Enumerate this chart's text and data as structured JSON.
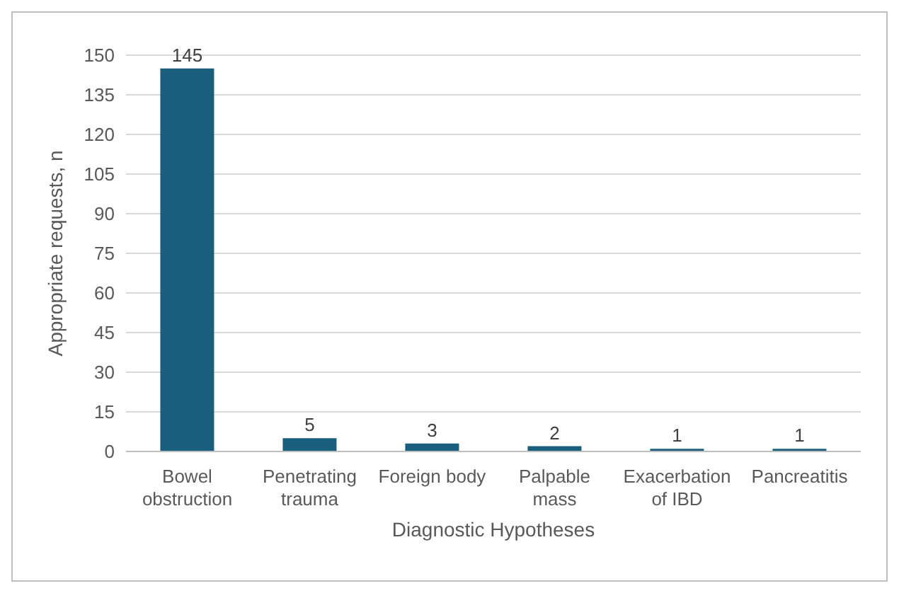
{
  "chart_data": {
    "type": "bar",
    "xlabel": "Diagnostic Hypotheses",
    "ylabel": "Appropriate requests, n",
    "categories": [
      "Bowel obstruction",
      "Penetrating trauma",
      "Foreign body",
      "Palpable mass",
      "Exacerbation of IBD",
      "Pancreatitis"
    ],
    "values": [
      145,
      5,
      3,
      2,
      1,
      1
    ],
    "color": "#195e7d",
    "ylim": [
      0,
      150
    ],
    "yticks": [
      0,
      15,
      30,
      45,
      60,
      75,
      90,
      105,
      120,
      135,
      150
    ],
    "grid": "y",
    "data_labels": true
  }
}
